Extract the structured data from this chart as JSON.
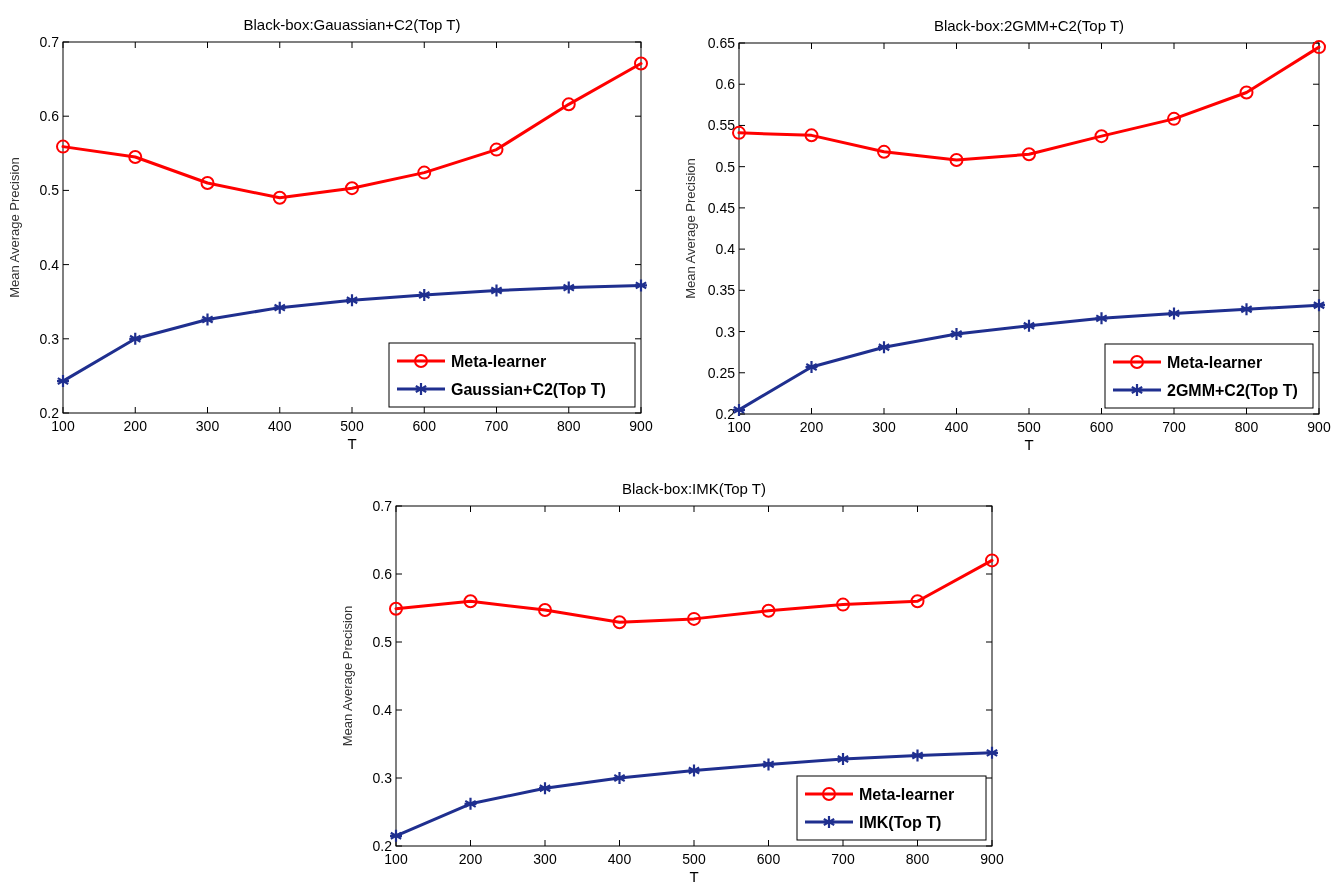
{
  "chart_data": [
    {
      "type": "line",
      "title": "Black-box:Gauassian+C2(Top T)",
      "xlabel": "T",
      "ylabel": "Mean Average Precision",
      "x": [
        100,
        200,
        300,
        400,
        500,
        600,
        700,
        800,
        900
      ],
      "xlim": [
        100,
        900
      ],
      "xticks": [
        100,
        200,
        300,
        400,
        500,
        600,
        700,
        800,
        900
      ],
      "ylim": [
        0.2,
        0.7
      ],
      "yticks": [
        0.2,
        0.3,
        0.4,
        0.5,
        0.6,
        0.7
      ],
      "legend": "bottom right",
      "series": [
        {
          "name": "Meta-learner",
          "color": "#ff0000",
          "marker": "circle",
          "values": [
            0.559,
            0.545,
            0.51,
            0.49,
            0.503,
            0.524,
            0.555,
            0.616,
            0.671
          ]
        },
        {
          "name": "Gaussian+C2(Top T)",
          "color": "#1f2f8f",
          "marker": "cross",
          "values": [
            0.243,
            0.3,
            0.326,
            0.342,
            0.352,
            0.359,
            0.365,
            0.369,
            0.372
          ]
        }
      ]
    },
    {
      "type": "line",
      "title": "Black-box:2GMM+C2(Top T)",
      "xlabel": "T",
      "ylabel": "Mean Average Precision",
      "x": [
        100,
        200,
        300,
        400,
        500,
        600,
        700,
        800,
        900
      ],
      "xlim": [
        100,
        900
      ],
      "xticks": [
        100,
        200,
        300,
        400,
        500,
        600,
        700,
        800,
        900
      ],
      "ylim": [
        0.2,
        0.65
      ],
      "yticks": [
        0.2,
        0.25,
        0.3,
        0.35,
        0.4,
        0.45,
        0.5,
        0.55,
        0.6,
        0.65
      ],
      "legend": "bottom right",
      "series": [
        {
          "name": "Meta-learner",
          "color": "#ff0000",
          "marker": "circle",
          "values": [
            0.541,
            0.538,
            0.518,
            0.508,
            0.515,
            0.537,
            0.558,
            0.59,
            0.645
          ]
        },
        {
          "name": "2GMM+C2(Top T)",
          "color": "#1f2f8f",
          "marker": "cross",
          "values": [
            0.205,
            0.257,
            0.281,
            0.297,
            0.307,
            0.316,
            0.322,
            0.327,
            0.332
          ]
        }
      ]
    },
    {
      "type": "line",
      "title": "Black-box:IMK(Top T)",
      "xlabel": "T",
      "ylabel": "Mean Average Precision",
      "x": [
        100,
        200,
        300,
        400,
        500,
        600,
        700,
        800,
        900
      ],
      "xlim": [
        100,
        900
      ],
      "xticks": [
        100,
        200,
        300,
        400,
        500,
        600,
        700,
        800,
        900
      ],
      "ylim": [
        0.2,
        0.7
      ],
      "yticks": [
        0.2,
        0.3,
        0.4,
        0.5,
        0.6,
        0.7
      ],
      "legend": "bottom right",
      "series": [
        {
          "name": "Meta-learner",
          "color": "#ff0000",
          "marker": "circle",
          "values": [
            0.549,
            0.56,
            0.547,
            0.529,
            0.534,
            0.546,
            0.555,
            0.56,
            0.62
          ]
        },
        {
          "name": "IMK(Top T)",
          "color": "#1f2f8f",
          "marker": "cross",
          "values": [
            0.215,
            0.262,
            0.285,
            0.3,
            0.311,
            0.32,
            0.328,
            0.333,
            0.337
          ]
        }
      ]
    }
  ]
}
